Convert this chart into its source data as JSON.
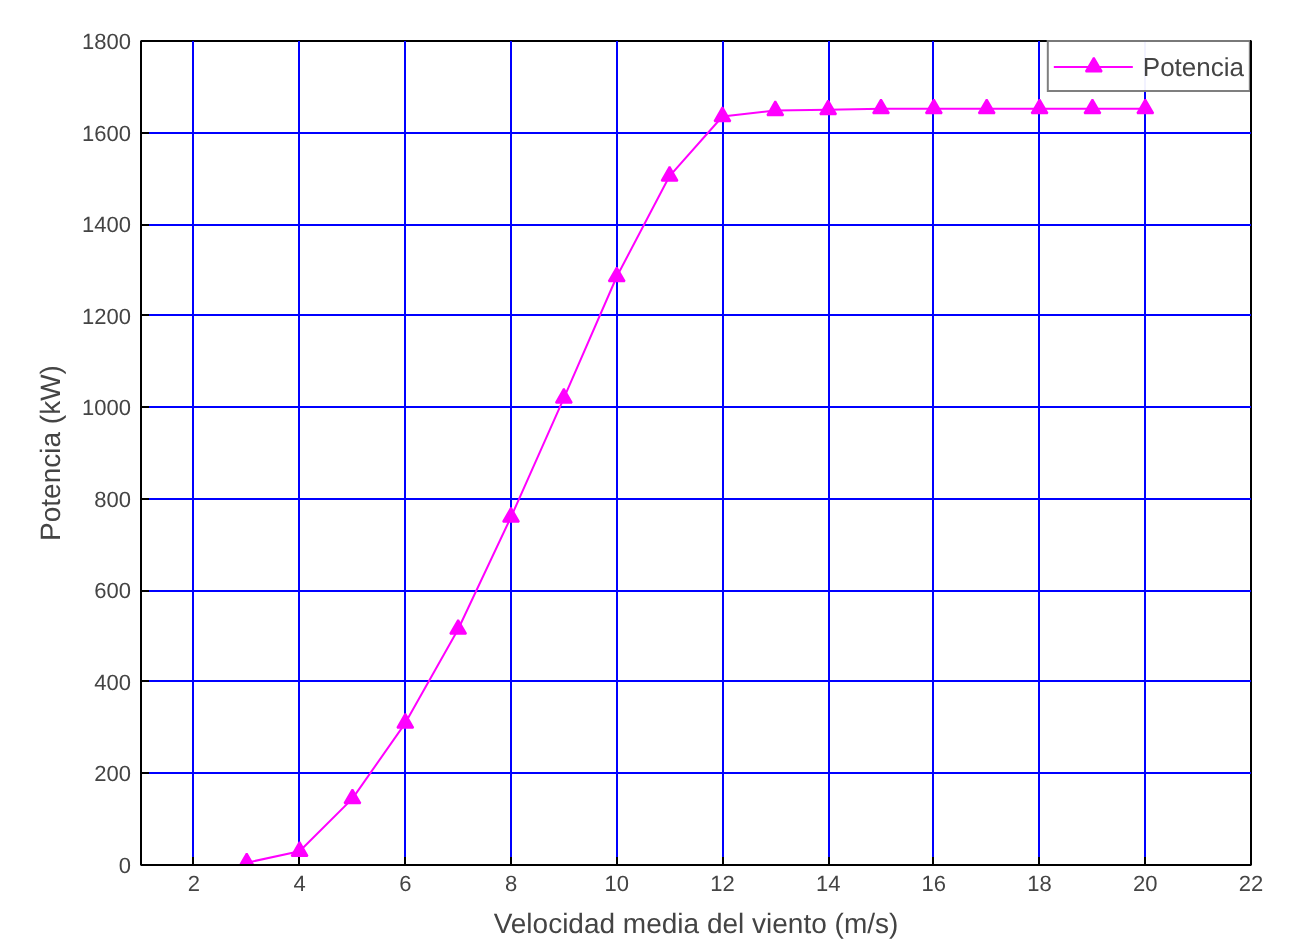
{
  "chart_data": {
    "type": "line",
    "xlabel": "Velocidad media del viento (m/s)",
    "ylabel": "Potencia (kW)",
    "x": [
      3,
      4,
      5,
      6,
      7,
      8,
      9,
      10,
      11,
      12,
      13,
      14,
      15,
      16,
      17,
      18,
      19,
      20
    ],
    "series": [
      {
        "name": "Potencia",
        "color": "#ff00ff",
        "values": [
          5,
          30,
          145,
          310,
          515,
          760,
          1020,
          1285,
          1505,
          1635,
          1648,
          1650,
          1652,
          1652,
          1652,
          1652,
          1652,
          1652
        ]
      }
    ],
    "xlim": [
      1,
      22
    ],
    "ylim": [
      0,
      1800
    ],
    "xticks": [
      2,
      4,
      6,
      8,
      10,
      12,
      14,
      16,
      18,
      20,
      22
    ],
    "yticks": [
      0,
      200,
      400,
      600,
      800,
      1000,
      1200,
      1400,
      1600,
      1800
    ],
    "grid": true,
    "legend": "top right",
    "marker": "triangle",
    "line_style": "solid"
  }
}
